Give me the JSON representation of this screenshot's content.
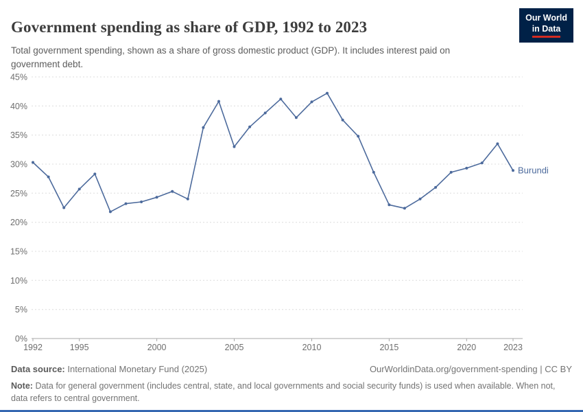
{
  "header": {
    "title": "Government spending as share of GDP, 1992 to 2023",
    "subtitle": "Total government spending, shown as a share of gross domestic product (GDP). It includes interest paid on government debt.",
    "logo": {
      "line1": "Our World",
      "line2": "in Data"
    }
  },
  "chart_data": {
    "type": "line",
    "title": "Government spending as share of GDP, 1992 to 2023",
    "xlabel": "",
    "ylabel": "",
    "xlim": [
      1992,
      2023
    ],
    "ylim": [
      0,
      45
    ],
    "y_step": 5,
    "y_tick_suffix": "%",
    "x_ticks": [
      1992,
      1995,
      2000,
      2005,
      2010,
      2015,
      2020,
      2023
    ],
    "grid": "horizontal-dashed",
    "legend_position": "end-of-line-label",
    "series": [
      {
        "name": "Burundi",
        "color": "#4c6a9c",
        "x": [
          1992,
          1993,
          1994,
          1995,
          1996,
          1997,
          1998,
          1999,
          2000,
          2001,
          2002,
          2003,
          2004,
          2005,
          2006,
          2007,
          2008,
          2009,
          2010,
          2011,
          2012,
          2013,
          2014,
          2015,
          2016,
          2017,
          2018,
          2019,
          2020,
          2021,
          2022,
          2023
        ],
        "values": [
          30.3,
          27.8,
          22.5,
          25.7,
          28.3,
          21.8,
          23.2,
          23.5,
          24.3,
          25.3,
          24.0,
          36.3,
          40.8,
          33.0,
          36.4,
          38.8,
          41.2,
          38.0,
          40.7,
          42.2,
          37.6,
          34.8,
          28.6,
          23.0,
          22.4,
          24.0,
          26.0,
          28.6,
          29.3,
          30.2,
          33.5,
          28.9
        ]
      }
    ]
  },
  "footer": {
    "source_label": "Data source:",
    "source_text": "International Monetary Fund (2025)",
    "attribution": "OurWorldinData.org/government-spending | CC BY",
    "note_label": "Note:",
    "note_text": "Data for general government (includes central, state, and local governments and social security funds) is used when available. When not, data refers to central government."
  },
  "colors": {
    "series_line": "#4c6a9c",
    "logo_background": "#002147",
    "logo_accent": "#d42b21",
    "bottom_accent_bar": "#3567b1"
  }
}
